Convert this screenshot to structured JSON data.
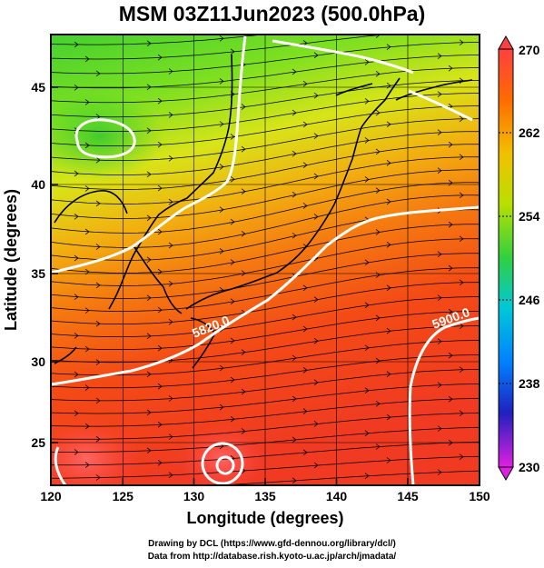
{
  "title": "MSM 03Z11Jun2023 (500.0hPa)",
  "x_axis": {
    "label": "Longitude (degrees)",
    "ticks": [
      "120",
      "125",
      "130",
      "135",
      "140",
      "145",
      "150"
    ]
  },
  "y_axis": {
    "label": "Latitude  (degrees)",
    "ticks": [
      "25",
      "30",
      "35",
      "40",
      "45"
    ]
  },
  "colorbar": {
    "ticks": [
      "270",
      "262",
      "254",
      "246",
      "238",
      "230"
    ]
  },
  "contour_labels": [
    "5820.0",
    "5900.0"
  ],
  "footer": {
    "line1": "Drawing by DCL (https://www.gfd-dennou.org/library/dcl/)",
    "line2": "Data from http://database.rish.kyoto-u.ac.jp/arch/jmadata/"
  },
  "chart_data": {
    "type": "heatmap",
    "title": "MSM 03Z11Jun2023 (500.0hPa)",
    "xlabel": "Longitude (degrees)",
    "ylabel": "Latitude  (degrees)",
    "xlim": [
      120,
      150
    ],
    "ylim": [
      22.4,
      47.6
    ],
    "x_ticks": [
      120,
      125,
      130,
      135,
      140,
      145,
      150
    ],
    "y_ticks": [
      25,
      30,
      35,
      40,
      45
    ],
    "colorbar_range": [
      230,
      270
    ],
    "colorbar_ticks": [
      270,
      262,
      254,
      246,
      238,
      230
    ],
    "colors": {
      "cold": "#e020e0",
      "mid_blue": "#2030ff",
      "cyan": "#00c8ff",
      "green": "#30d030",
      "yellow": "#e8e010",
      "orange": "#ff8000",
      "red": "#ff2020",
      "hot": "#ff5050",
      "contour": "#ffffff"
    },
    "grid": true,
    "overlay": "streamlines (wind)",
    "contours": [
      {
        "label": "5820.0"
      },
      {
        "label": "5900.0"
      }
    ]
  }
}
